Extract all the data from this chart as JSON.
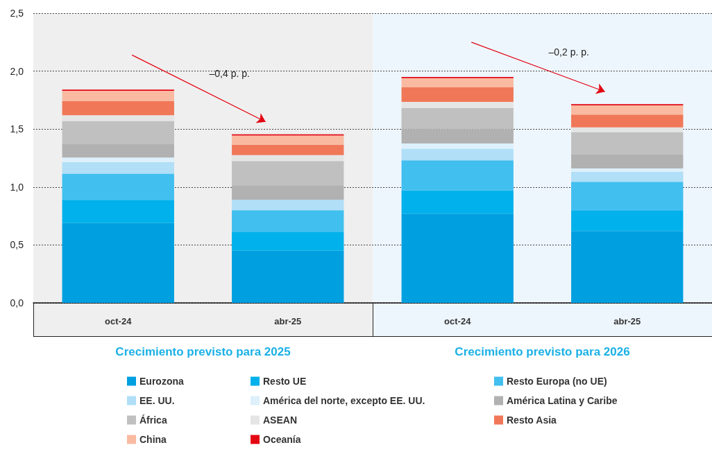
{
  "chart_data": {
    "type": "bar",
    "stacked": true,
    "categories": [
      "oct-24",
      "abr-25",
      "oct-24",
      "abr-25"
    ],
    "series": [
      {
        "name": "Eurozona",
        "color": "#009fe0",
        "values": [
          0.69,
          0.45,
          0.77,
          0.62
        ]
      },
      {
        "name": "Resto UE",
        "color": "#00b1eb",
        "values": [
          0.2,
          0.16,
          0.2,
          0.18
        ]
      },
      {
        "name": "Resto Europa (no UE)",
        "color": "#41bfef",
        "values": [
          0.225,
          0.19,
          0.26,
          0.245
        ]
      },
      {
        "name": "EE. UU.",
        "color": "#b0dff7",
        "values": [
          0.1,
          0.09,
          0.1,
          0.085
        ]
      },
      {
        "name": "América del norte, excepto EE. UU.",
        "color": "#ddf0fb",
        "values": [
          0.04,
          0,
          0.045,
          0.03
        ]
      },
      {
        "name": "América Latina y Caribe",
        "color": "#b1b1b1",
        "values": [
          0.115,
          0.125,
          0.125,
          0.12
        ]
      },
      {
        "name": "África",
        "color": "#c0c0c0",
        "values": [
          0.2,
          0.21,
          0.18,
          0.195
        ]
      },
      {
        "name": "ASEAN",
        "color": "#e5e5e5",
        "values": [
          0.05,
          0.05,
          0.055,
          0.04
        ]
      },
      {
        "name": "Resto Asia",
        "color": "#f07858",
        "values": [
          0.12,
          0.09,
          0.125,
          0.11
        ]
      },
      {
        "name": "China",
        "color": "#f9baa1",
        "values": [
          0.09,
          0.08,
          0.08,
          0.08
        ]
      },
      {
        "name": "Oceanía",
        "color": "#e30613",
        "values": [
          0.01,
          0.01,
          0.01,
          0.01
        ]
      }
    ],
    "ylim": [
      0,
      2.5
    ],
    "yticks": [
      {
        "value": 0,
        "label": "0,0"
      },
      {
        "value": 0.5,
        "label": "0,5"
      },
      {
        "value": 1,
        "label": "1,0"
      },
      {
        "value": 1.5,
        "label": "1,5"
      },
      {
        "value": 2,
        "label": "2,0"
      },
      {
        "value": 2.5,
        "label": "2,5"
      }
    ],
    "grid": "y",
    "legend": "bottom",
    "annotations": [
      "–0,4 p. p.",
      "–0,2 p. p.",
      "Crecimiento previsto para 2025",
      "Crecimiento previsto para 2026"
    ]
  }
}
